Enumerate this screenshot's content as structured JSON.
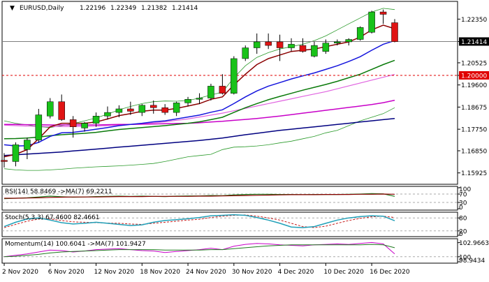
{
  "chart_data": {
    "type": "candlestick",
    "title": "EURUSD,Daily",
    "ohlc_header": [
      "1.22196",
      "1.22349",
      "1.21382",
      "1.21414"
    ],
    "price_axis": {
      "ylim": [
        1.1545,
        1.2309
      ],
      "ticks": [
        {
          "label": "1.22350",
          "value": 1.2235
        },
        {
          "label": "1.21414",
          "value": 1.21414,
          "boxed": true
        },
        {
          "label": "1.20525",
          "value": 1.20525
        },
        {
          "label": "1.20000",
          "value": 1.2,
          "boxed": true,
          "box_color": "#e00000"
        },
        {
          "label": "1.19600",
          "value": 1.196
        },
        {
          "label": "1.18675",
          "value": 1.18675
        },
        {
          "label": "1.17750",
          "value": 1.1775
        },
        {
          "label": "1.16850",
          "value": 1.1685
        },
        {
          "label": "1.15925",
          "value": 1.15925
        }
      ]
    },
    "x_axis": {
      "labels": [
        "2 Nov 2020",
        "6 Nov 2020",
        "12 Nov 2020",
        "18 Nov 2020",
        "24 Nov 2020",
        "30 Nov 2020",
        "4 Dec 2020",
        "10 Dec 2020",
        "16 Dec 2020"
      ],
      "label_bars": [
        0,
        4,
        8,
        12,
        16,
        20,
        24,
        28,
        32
      ]
    },
    "candles": [
      {
        "o": 1.1645,
        "h": 1.1675,
        "l": 1.1615,
        "c": 1.164
      },
      {
        "o": 1.164,
        "h": 1.172,
        "l": 1.162,
        "c": 1.171
      },
      {
        "o": 1.169,
        "h": 1.174,
        "l": 1.165,
        "c": 1.173
      },
      {
        "o": 1.173,
        "h": 1.186,
        "l": 1.172,
        "c": 1.1835
      },
      {
        "o": 1.183,
        "h": 1.1905,
        "l": 1.182,
        "c": 1.189
      },
      {
        "o": 1.189,
        "h": 1.192,
        "l": 1.181,
        "c": 1.1815
      },
      {
        "o": 1.1815,
        "h": 1.183,
        "l": 1.174,
        "c": 1.1785
      },
      {
        "o": 1.178,
        "h": 1.1805,
        "l": 1.1765,
        "c": 1.18
      },
      {
        "o": 1.18,
        "h": 1.1845,
        "l": 1.1785,
        "c": 1.183
      },
      {
        "o": 1.183,
        "h": 1.187,
        "l": 1.1815,
        "c": 1.1845
      },
      {
        "o": 1.1845,
        "h": 1.1875,
        "l": 1.1825,
        "c": 1.186
      },
      {
        "o": 1.186,
        "h": 1.189,
        "l": 1.1835,
        "c": 1.185
      },
      {
        "o": 1.1845,
        "h": 1.188,
        "l": 1.183,
        "c": 1.1875
      },
      {
        "o": 1.1875,
        "h": 1.1895,
        "l": 1.184,
        "c": 1.1865
      },
      {
        "o": 1.1865,
        "h": 1.188,
        "l": 1.1835,
        "c": 1.1845
      },
      {
        "o": 1.1845,
        "h": 1.189,
        "l": 1.183,
        "c": 1.1885
      },
      {
        "o": 1.1885,
        "h": 1.191,
        "l": 1.187,
        "c": 1.19
      },
      {
        "o": 1.19,
        "h": 1.1925,
        "l": 1.188,
        "c": 1.1905
      },
      {
        "o": 1.1905,
        "h": 1.1965,
        "l": 1.1895,
        "c": 1.1955
      },
      {
        "o": 1.1955,
        "h": 1.2005,
        "l": 1.192,
        "c": 1.1925
      },
      {
        "o": 1.1925,
        "h": 1.208,
        "l": 1.192,
        "c": 1.207
      },
      {
        "o": 1.207,
        "h": 1.2125,
        "l": 1.206,
        "c": 1.2115
      },
      {
        "o": 1.2115,
        "h": 1.2175,
        "l": 1.209,
        "c": 1.214
      },
      {
        "o": 1.214,
        "h": 1.2175,
        "l": 1.211,
        "c": 1.2125
      },
      {
        "o": 1.214,
        "h": 1.217,
        "l": 1.206,
        "c": 1.2115
      },
      {
        "o": 1.2115,
        "h": 1.2155,
        "l": 1.21,
        "c": 1.213
      },
      {
        "o": 1.2125,
        "h": 1.2155,
        "l": 1.2095,
        "c": 1.21
      },
      {
        "o": 1.208,
        "h": 1.214,
        "l": 1.2075,
        "c": 1.2125
      },
      {
        "o": 1.21,
        "h": 1.215,
        "l": 1.209,
        "c": 1.2135
      },
      {
        "o": 1.2135,
        "h": 1.215,
        "l": 1.2125,
        "c": 1.214
      },
      {
        "o": 1.214,
        "h": 1.2155,
        "l": 1.2125,
        "c": 1.215
      },
      {
        "o": 1.215,
        "h": 1.2205,
        "l": 1.2145,
        "c": 1.22
      },
      {
        "o": 1.218,
        "h": 1.227,
        "l": 1.2175,
        "c": 1.2265
      },
      {
        "o": 1.2265,
        "h": 1.2275,
        "l": 1.2215,
        "c": 1.2255
      },
      {
        "o": 1.222,
        "h": 1.2235,
        "l": 1.2138,
        "c": 1.2141
      }
    ],
    "overlays": [
      {
        "color": "#2a9a2a",
        "width": 0.8,
        "values": [
          1.181,
          1.18,
          1.1793,
          1.1786,
          1.1782,
          1.179,
          1.1798,
          1.181,
          1.1822,
          1.1838,
          1.1856,
          1.187,
          1.1882,
          1.189,
          1.1893,
          1.1892,
          1.1895,
          1.1905,
          1.1918,
          1.193,
          1.199,
          1.204,
          1.2075,
          1.2095,
          1.211,
          1.212,
          1.213,
          1.2145,
          1.2165,
          1.219,
          1.2215,
          1.224,
          1.2265,
          1.228,
          1.2275
        ]
      },
      {
        "color": "#2a9a2a",
        "width": 0.8,
        "values": [
          1.161,
          1.1605,
          1.1603,
          1.1603,
          1.1605,
          1.1608,
          1.1612,
          1.1615,
          1.1618,
          1.162,
          1.1622,
          1.1625,
          1.1628,
          1.1632,
          1.164,
          1.165,
          1.166,
          1.1665,
          1.167,
          1.169,
          1.17,
          1.1702,
          1.1705,
          1.171,
          1.1718,
          1.1725,
          1.1735,
          1.1745,
          1.176,
          1.177,
          1.179,
          1.181,
          1.1825,
          1.184,
          1.1865
        ]
      },
      {
        "color": "#e064e0",
        "width": 1.2,
        "values": [
          1.1792,
          1.179,
          1.1788,
          1.1787,
          1.1786,
          1.1786,
          1.1786,
          1.1787,
          1.1788,
          1.179,
          1.1792,
          1.1795,
          1.1798,
          1.1802,
          1.1806,
          1.1812,
          1.1818,
          1.1826,
          1.1834,
          1.1842,
          1.1852,
          1.1862,
          1.1872,
          1.1882,
          1.1892,
          1.1902,
          1.1912,
          1.1922,
          1.1932,
          1.1944,
          1.1956,
          1.1968,
          1.198,
          1.1992,
          1.2004
        ]
      },
      {
        "color": "#c800c8",
        "width": 1.5,
        "values": [
          1.1795,
          1.1795,
          1.1794,
          1.1794,
          1.1793,
          1.1793,
          1.1793,
          1.1793,
          1.1793,
          1.1794,
          1.1795,
          1.1795,
          1.1796,
          1.1797,
          1.1798,
          1.1799,
          1.18,
          1.1802,
          1.1805,
          1.1808,
          1.1812,
          1.1816,
          1.182,
          1.1825,
          1.183,
          1.1836,
          1.1842,
          1.1848,
          1.1854,
          1.186,
          1.1866,
          1.1872,
          1.1878,
          1.1886,
          1.1896
        ]
      },
      {
        "color": "#000080",
        "width": 1.5,
        "values": [
          1.1665,
          1.1668,
          1.1671,
          1.1674,
          1.1677,
          1.168,
          1.1684,
          1.1688,
          1.1692,
          1.1696,
          1.17,
          1.1704,
          1.1708,
          1.1712,
          1.1716,
          1.172,
          1.1724,
          1.1728,
          1.1733,
          1.1738,
          1.1745,
          1.1752,
          1.1758,
          1.1764,
          1.177,
          1.1775,
          1.178,
          1.1785,
          1.179,
          1.1795,
          1.18,
          1.1805,
          1.181,
          1.1815,
          1.182
        ]
      },
      {
        "color": "#0a7a0a",
        "width": 1.5,
        "values": [
          1.1735,
          1.1736,
          1.1738,
          1.1742,
          1.1748,
          1.1752,
          1.1755,
          1.1758,
          1.1762,
          1.1768,
          1.1774,
          1.1778,
          1.1782,
          1.1786,
          1.179,
          1.1795,
          1.18,
          1.1806,
          1.1815,
          1.1825,
          1.1845,
          1.1865,
          1.1882,
          1.1898,
          1.1912,
          1.1925,
          1.1938,
          1.195,
          1.1962,
          1.1975,
          1.199,
          1.2005,
          1.2025,
          1.2045,
          1.2063
        ]
      },
      {
        "color": "#1515dd",
        "width": 1.5,
        "values": [
          1.171,
          1.1705,
          1.1706,
          1.172,
          1.1745,
          1.176,
          1.1762,
          1.1768,
          1.1775,
          1.1782,
          1.179,
          1.1795,
          1.18,
          1.1806,
          1.181,
          1.1818,
          1.1826,
          1.1834,
          1.1846,
          1.1856,
          1.1882,
          1.191,
          1.1935,
          1.1955,
          1.197,
          1.1985,
          1.1998,
          1.201,
          1.2025,
          1.204,
          1.2058,
          1.2078,
          1.2105,
          1.213,
          1.2145
        ]
      },
      {
        "color": "#8b0000",
        "width": 1.5,
        "values": [
          1.166,
          1.167,
          1.169,
          1.1735,
          1.1785,
          1.18,
          1.18,
          1.18,
          1.1805,
          1.1818,
          1.1832,
          1.184,
          1.185,
          1.1855,
          1.1855,
          1.1862,
          1.1872,
          1.1882,
          1.19,
          1.191,
          1.196,
          1.2005,
          1.2045,
          1.207,
          1.2085,
          1.21,
          1.2105,
          1.211,
          1.212,
          1.213,
          1.214,
          1.216,
          1.219,
          1.221,
          1.2195
        ]
      }
    ],
    "panels": [
      {
        "name": "rsi",
        "label": "RSI(14) 58.8469  ->MA(7) 69.2211",
        "ylim": [
          0,
          100
        ],
        "ticks": [
          {
            "label": "100",
            "value": 100
          },
          {
            "label": "70",
            "value": 70
          },
          {
            "label": "30",
            "value": 30
          },
          {
            "label": "0",
            "value": 0
          }
        ],
        "levels": [
          70,
          30
        ],
        "series": [
          {
            "color": "#1e7a1e",
            "width": 1.2,
            "values": [
              48,
              50,
              52,
              56,
              60,
              57,
              55,
              56,
              58,
              59,
              60,
              59,
              60,
              59,
              58,
              60,
              61,
              61,
              63,
              62,
              66,
              68,
              69,
              69,
              68,
              68,
              67,
              68,
              68,
              68,
              69,
              70,
              72,
              71,
              59
            ]
          },
          {
            "color": "#8b0000",
            "width": 1.2,
            "values": [
              50,
              50,
              51,
              52,
              54,
              55,
              56,
              56,
              56,
              57,
              58,
              58,
              58,
              59,
              59,
              59,
              59,
              60,
              60,
              61,
              62,
              63,
              64,
              65,
              66,
              67,
              67,
              67,
              68,
              68,
              68,
              69,
              69,
              70,
              69
            ]
          }
        ]
      },
      {
        "name": "stoch",
        "label": "Stoch(5,3,3) 67.4600 82.4661",
        "ylim": [
          0,
          100
        ],
        "ticks": [
          {
            "label": "80",
            "value": 80
          },
          {
            "label": "20",
            "value": 20
          },
          {
            "label": "0",
            "value": 0
          }
        ],
        "levels": [
          80,
          20
        ],
        "series": [
          {
            "color": "#c81e1e",
            "width": 1,
            "dash": "3,2",
            "values": [
              35,
              50,
              65,
              75,
              75,
              68,
              62,
              60,
              58,
              56,
              55,
              52,
              50,
              55,
              60,
              65,
              70,
              74,
              82,
              88,
              92,
              94,
              88,
              80,
              70,
              55,
              40,
              35,
              42,
              55,
              68,
              78,
              85,
              88,
              82
            ]
          },
          {
            "color": "#20a0b8",
            "width": 1.5,
            "values": [
              40,
              60,
              75,
              80,
              70,
              58,
              52,
              55,
              60,
              55,
              50,
              45,
              48,
              60,
              68,
              72,
              76,
              82,
              90,
              92,
              95,
              92,
              82,
              70,
              55,
              38,
              35,
              40,
              55,
              70,
              80,
              86,
              90,
              88,
              67
            ]
          }
        ]
      },
      {
        "name": "momentum",
        "label": "Momentum(14) 100.6041  ->MA(7) 101.9427",
        "ylim": [
          98.9434,
          103.5
        ],
        "ticks": [
          {
            "label": "102.9663",
            "value": 102.9663
          },
          {
            "label": "100",
            "value": 100
          },
          {
            "label": "98.9434",
            "value": 98.9434
          }
        ],
        "levels": [
          100
        ],
        "series": [
          {
            "color": "#c800c8",
            "width": 1,
            "values": [
              100.0,
              100.3,
              100.6,
              101.0,
              101.4,
              101.3,
              101.0,
              101.2,
              101.5,
              101.6,
              101.7,
              101.5,
              101.3,
              101.2,
              100.9,
              101.1,
              101.3,
              101.5,
              101.8,
              101.5,
              102.2,
              102.6,
              102.8,
              102.7,
              102.5,
              102.4,
              102.3,
              102.5,
              102.6,
              102.7,
              102.6,
              102.8,
              103.0,
              102.7,
              100.6
            ]
          },
          {
            "color": "#1e7a1e",
            "width": 1,
            "values": [
              100.0,
              100.1,
              100.3,
              100.5,
              100.8,
              101.0,
              101.1,
              101.2,
              101.3,
              101.4,
              101.5,
              101.5,
              101.5,
              101.5,
              101.4,
              101.4,
              101.4,
              101.4,
              101.5,
              101.5,
              101.7,
              101.9,
              102.1,
              102.3,
              102.4,
              102.5,
              102.5,
              102.5,
              102.5,
              102.5,
              102.5,
              102.5,
              102.6,
              102.5,
              101.9
            ]
          }
        ]
      }
    ],
    "colors": {
      "bull": "#19c219",
      "bear": "#e01414",
      "axis_line": "#000000",
      "grid_line": "#aaaaaa",
      "ref_line": "#c00000"
    }
  }
}
